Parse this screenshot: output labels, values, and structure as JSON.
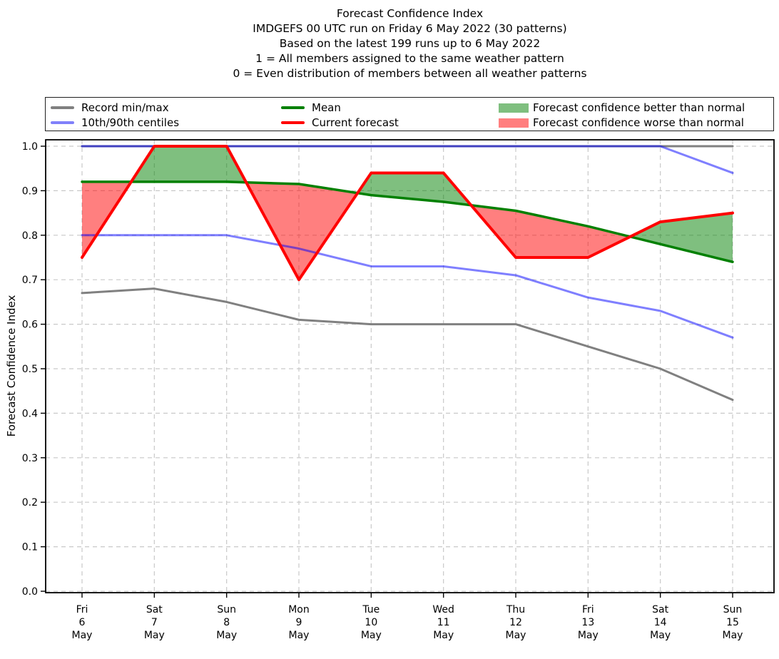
{
  "title": {
    "lines": [
      "Forecast Confidence Index",
      "IMDGEFS 00 UTC run on Friday 6 May 2022 (30 patterns)",
      "Based on the latest 199 runs up to 6 May 2022",
      "1 = All members assigned to the same weather pattern",
      "0 = Even distribution of members between all weather patterns"
    ]
  },
  "legend": {
    "items": [
      {
        "label": "Record min/max",
        "swatch": "line",
        "color": "#808080"
      },
      {
        "label": "10th/90th centiles",
        "swatch": "line",
        "color": "#8080fa"
      },
      {
        "label": "Mean",
        "swatch": "line",
        "color": "#008000"
      },
      {
        "label": "Current forecast",
        "swatch": "line",
        "color": "#ff0000"
      },
      {
        "label": "Forecast confidence better than normal",
        "swatch": "patch",
        "color": "#7fbf7f"
      },
      {
        "label": "Forecast confidence worse than normal",
        "swatch": "patch",
        "color": "#ff7f7f"
      }
    ]
  },
  "chart_data": {
    "type": "line",
    "title": "Forecast Confidence Index",
    "xlabel": "",
    "ylabel": "Forecast Confidence Index",
    "ylim": [
      0.0,
      1.0
    ],
    "y_ticks": [
      0.0,
      0.1,
      0.2,
      0.3,
      0.4,
      0.5,
      0.6,
      0.7,
      0.8,
      0.9,
      1.0
    ],
    "grid": true,
    "legend_position": "top",
    "categories": [
      {
        "dow": "Fri",
        "day": "6",
        "mon": "May"
      },
      {
        "dow": "Sat",
        "day": "7",
        "mon": "May"
      },
      {
        "dow": "Sun",
        "day": "8",
        "mon": "May"
      },
      {
        "dow": "Mon",
        "day": "9",
        "mon": "May"
      },
      {
        "dow": "Tue",
        "day": "10",
        "mon": "May"
      },
      {
        "dow": "Wed",
        "day": "11",
        "mon": "May"
      },
      {
        "dow": "Thu",
        "day": "12",
        "mon": "May"
      },
      {
        "dow": "Fri",
        "day": "13",
        "mon": "May"
      },
      {
        "dow": "Sat",
        "day": "14",
        "mon": "May"
      },
      {
        "dow": "Sun",
        "day": "15",
        "mon": "May"
      }
    ],
    "series": [
      {
        "id": "record_max",
        "name": "Record max",
        "color": "#808080",
        "opacity": 1.0,
        "values": [
          1.0,
          1.0,
          1.0,
          1.0,
          1.0,
          1.0,
          1.0,
          1.0,
          1.0,
          1.0
        ]
      },
      {
        "id": "record_min",
        "name": "Record min",
        "color": "#808080",
        "opacity": 1.0,
        "values": [
          0.67,
          0.68,
          0.65,
          0.61,
          0.6,
          0.6,
          0.6,
          0.55,
          0.5,
          0.43
        ]
      },
      {
        "id": "p90",
        "name": "90th centile",
        "color": "#0000ff",
        "opacity": 0.5,
        "values": [
          1.0,
          1.0,
          1.0,
          1.0,
          1.0,
          1.0,
          1.0,
          1.0,
          1.0,
          0.94
        ]
      },
      {
        "id": "p10",
        "name": "10th centile",
        "color": "#0000ff",
        "opacity": 0.5,
        "values": [
          0.8,
          0.8,
          0.8,
          0.77,
          0.73,
          0.73,
          0.71,
          0.66,
          0.63,
          0.57
        ]
      },
      {
        "id": "mean",
        "name": "Mean",
        "color": "#008000",
        "opacity": 1.0,
        "values": [
          0.92,
          0.92,
          0.92,
          0.915,
          0.89,
          0.875,
          0.855,
          0.82,
          0.78,
          0.74
        ]
      },
      {
        "id": "forecast",
        "name": "Current forecast",
        "color": "#ff0000",
        "opacity": 1.0,
        "values": [
          0.75,
          1.0,
          1.0,
          0.7,
          0.94,
          0.94,
          0.75,
          0.75,
          0.83,
          0.85
        ]
      }
    ],
    "fills": {
      "better": {
        "label": "Forecast confidence better than normal",
        "color": "#008000",
        "opacity": 0.5
      },
      "worse": {
        "label": "Forecast confidence worse than normal",
        "color": "#ff0000",
        "opacity": 0.5
      }
    }
  }
}
